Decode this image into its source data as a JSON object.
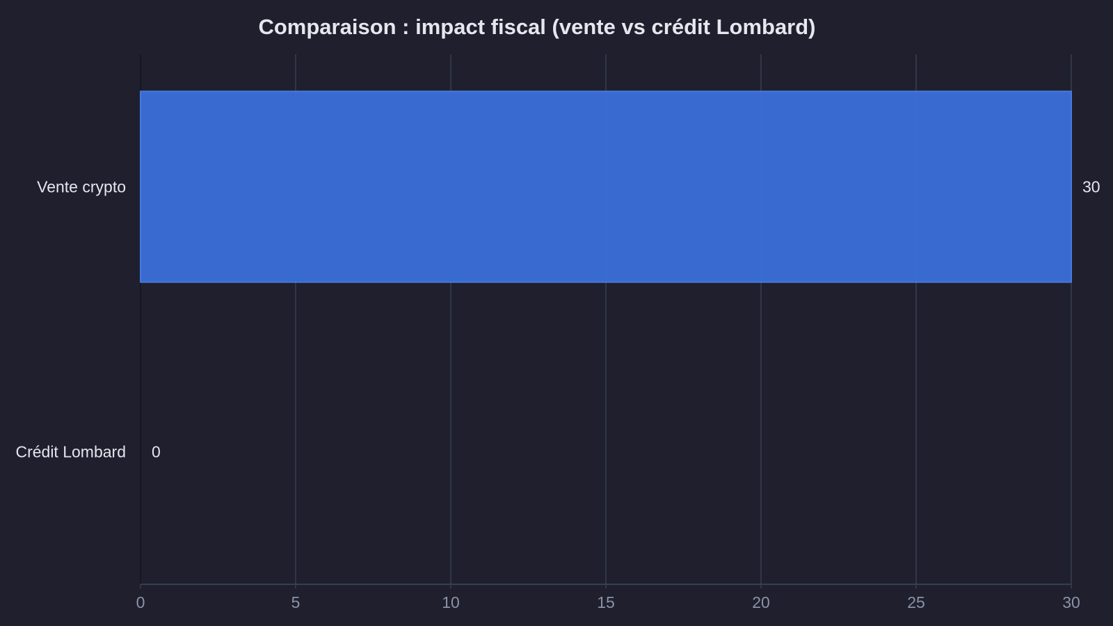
{
  "chart_data": {
    "type": "bar",
    "orientation": "horizontal",
    "title": "Comparaison : impact fiscal (vente vs crédit Lombard)",
    "xlabel": "",
    "ylabel": "",
    "categories": [
      "Vente crypto",
      "Crédit Lombard"
    ],
    "values": [
      30,
      0
    ],
    "value_labels": [
      "30",
      "0"
    ],
    "xlim": [
      0,
      30
    ],
    "x_ticks": [
      0,
      5,
      10,
      15,
      20,
      25,
      30
    ],
    "x_tick_labels": [
      "0",
      "5",
      "10",
      "15",
      "20",
      "25",
      "30"
    ],
    "grid": "vertical",
    "legend": "none"
  },
  "colors": {
    "background": "#1f1f2e",
    "bar_fill": "#3a6fd8",
    "bar_stroke": "#4a7ee6",
    "grid": "#37414f",
    "text": "#e6e6ee",
    "tick_text": "#8a93a8"
  }
}
